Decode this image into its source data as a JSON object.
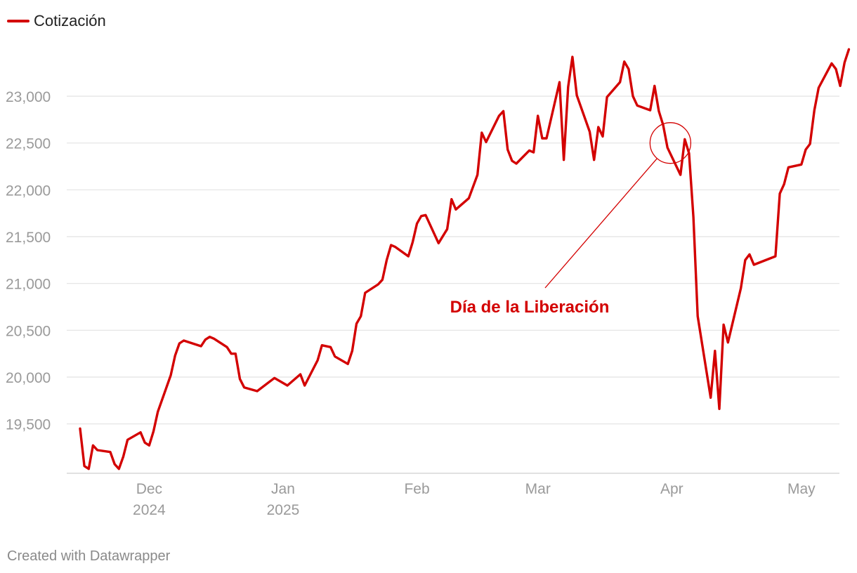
{
  "legend": {
    "label": "Cotización"
  },
  "credit": "Created with Datawrapper",
  "colors": {
    "series": "#d30000",
    "grid": "#e2e2e2",
    "tick_text": "#9a9a9a"
  },
  "chart_data": {
    "type": "line",
    "title": "",
    "xlabel": "",
    "ylabel": "",
    "grid": true,
    "legend_position": "top-left",
    "xlim": [
      "2024-11-15",
      "2025-05-09"
    ],
    "ylim": [
      19000,
      23500
    ],
    "yticks": [
      {
        "value": 19500,
        "label": "19,500"
      },
      {
        "value": 20000,
        "label": "20,000"
      },
      {
        "value": 20500,
        "label": "20,500"
      },
      {
        "value": 21000,
        "label": "21,000"
      },
      {
        "value": 21500,
        "label": "21,500"
      },
      {
        "value": 22000,
        "label": "22,000"
      },
      {
        "value": 22500,
        "label": "22,500"
      },
      {
        "value": 23000,
        "label": "23,000"
      }
    ],
    "xticks": [
      {
        "date": "2024-12-01",
        "label": "Dec",
        "sublabel": "2024"
      },
      {
        "date": "2025-01-01",
        "label": "Jan",
        "sublabel": "2025"
      },
      {
        "date": "2025-02-01",
        "label": "Feb",
        "sublabel": ""
      },
      {
        "date": "2025-03-01",
        "label": "Mar",
        "sublabel": ""
      },
      {
        "date": "2025-04-01",
        "label": "Apr",
        "sublabel": ""
      },
      {
        "date": "2025-05-01",
        "label": "May",
        "sublabel": ""
      }
    ],
    "annotation": {
      "text": "Día de la Liberación",
      "date": "2025-04-01",
      "value": 22500
    },
    "series": [
      {
        "name": "Cotización",
        "points": [
          [
            "2024-11-15",
            19450
          ],
          [
            "2024-11-16",
            19050
          ],
          [
            "2024-11-17",
            19020
          ],
          [
            "2024-11-18",
            19270
          ],
          [
            "2024-11-19",
            19220
          ],
          [
            "2024-11-22",
            19200
          ],
          [
            "2024-11-23",
            19070
          ],
          [
            "2024-11-24",
            19020
          ],
          [
            "2024-11-25",
            19150
          ],
          [
            "2024-11-26",
            19330
          ],
          [
            "2024-11-29",
            19410
          ],
          [
            "2024-11-30",
            19300
          ],
          [
            "2024-12-01",
            19270
          ],
          [
            "2024-12-02",
            19420
          ],
          [
            "2024-12-03",
            19630
          ],
          [
            "2024-12-06",
            20020
          ],
          [
            "2024-12-07",
            20230
          ],
          [
            "2024-12-08",
            20360
          ],
          [
            "2024-12-09",
            20390
          ],
          [
            "2024-12-13",
            20330
          ],
          [
            "2024-12-14",
            20400
          ],
          [
            "2024-12-15",
            20430
          ],
          [
            "2024-12-16",
            20410
          ],
          [
            "2024-12-19",
            20320
          ],
          [
            "2024-12-20",
            20250
          ],
          [
            "2024-12-21",
            20250
          ],
          [
            "2024-12-22",
            19980
          ],
          [
            "2024-12-23",
            19890
          ],
          [
            "2024-12-26",
            19850
          ],
          [
            "2024-12-30",
            19990
          ],
          [
            "2025-01-02",
            19910
          ],
          [
            "2025-01-05",
            20030
          ],
          [
            "2025-01-06",
            19910
          ],
          [
            "2025-01-09",
            20180
          ],
          [
            "2025-01-10",
            20340
          ],
          [
            "2025-01-12",
            20320
          ],
          [
            "2025-01-13",
            20220
          ],
          [
            "2025-01-16",
            20140
          ],
          [
            "2025-01-17",
            20280
          ],
          [
            "2025-01-18",
            20570
          ],
          [
            "2025-01-19",
            20650
          ],
          [
            "2025-01-20",
            20900
          ],
          [
            "2025-01-23",
            20990
          ],
          [
            "2025-01-24",
            21040
          ],
          [
            "2025-01-25",
            21250
          ],
          [
            "2025-01-26",
            21410
          ],
          [
            "2025-01-27",
            21390
          ],
          [
            "2025-01-30",
            21290
          ],
          [
            "2025-01-31",
            21440
          ],
          [
            "2025-02-01",
            21640
          ],
          [
            "2025-02-02",
            21720
          ],
          [
            "2025-02-03",
            21730
          ],
          [
            "2025-02-06",
            21430
          ],
          [
            "2025-02-08",
            21580
          ],
          [
            "2025-02-09",
            21900
          ],
          [
            "2025-02-10",
            21790
          ],
          [
            "2025-02-13",
            21910
          ],
          [
            "2025-02-15",
            22160
          ],
          [
            "2025-02-16",
            22610
          ],
          [
            "2025-02-17",
            22510
          ],
          [
            "2025-02-20",
            22790
          ],
          [
            "2025-02-21",
            22840
          ],
          [
            "2025-02-22",
            22430
          ],
          [
            "2025-02-23",
            22310
          ],
          [
            "2025-02-24",
            22280
          ],
          [
            "2025-02-27",
            22420
          ],
          [
            "2025-02-28",
            22400
          ],
          [
            "2025-03-01",
            22790
          ],
          [
            "2025-03-02",
            22550
          ],
          [
            "2025-03-03",
            22550
          ],
          [
            "2025-03-06",
            23150
          ],
          [
            "2025-03-07",
            22320
          ],
          [
            "2025-03-08",
            23100
          ],
          [
            "2025-03-09",
            23420
          ],
          [
            "2025-03-10",
            23010
          ],
          [
            "2025-03-13",
            22620
          ],
          [
            "2025-03-14",
            22320
          ],
          [
            "2025-03-15",
            22670
          ],
          [
            "2025-03-16",
            22570
          ],
          [
            "2025-03-17",
            22990
          ],
          [
            "2025-03-20",
            23150
          ],
          [
            "2025-03-21",
            23370
          ],
          [
            "2025-03-22",
            23290
          ],
          [
            "2025-03-23",
            23000
          ],
          [
            "2025-03-24",
            22900
          ],
          [
            "2025-03-27",
            22850
          ],
          [
            "2025-03-28",
            23110
          ],
          [
            "2025-03-29",
            22840
          ],
          [
            "2025-03-30",
            22690
          ],
          [
            "2025-03-31",
            22450
          ],
          [
            "2025-04-03",
            22160
          ],
          [
            "2025-04-04",
            22540
          ],
          [
            "2025-04-05",
            22390
          ],
          [
            "2025-04-06",
            21710
          ],
          [
            "2025-04-07",
            20650
          ],
          [
            "2025-04-10",
            19780
          ],
          [
            "2025-04-11",
            20280
          ],
          [
            "2025-04-12",
            19660
          ],
          [
            "2025-04-13",
            20560
          ],
          [
            "2025-04-14",
            20370
          ],
          [
            "2025-04-17",
            20950
          ],
          [
            "2025-04-18",
            21250
          ],
          [
            "2025-04-19",
            21310
          ],
          [
            "2025-04-20",
            21200
          ],
          [
            "2025-04-25",
            21290
          ],
          [
            "2025-04-26",
            21960
          ],
          [
            "2025-04-27",
            22060
          ],
          [
            "2025-04-28",
            22240
          ],
          [
            "2025-05-01",
            22270
          ],
          [
            "2025-05-02",
            22430
          ],
          [
            "2025-05-03",
            22490
          ],
          [
            "2025-05-04",
            22850
          ],
          [
            "2025-05-05",
            23090
          ],
          [
            "2025-05-08",
            23350
          ],
          [
            "2025-05-09",
            23290
          ],
          [
            "2025-05-10",
            23110
          ],
          [
            "2025-05-11",
            23360
          ],
          [
            "2025-05-12",
            23500
          ]
        ]
      }
    ]
  }
}
